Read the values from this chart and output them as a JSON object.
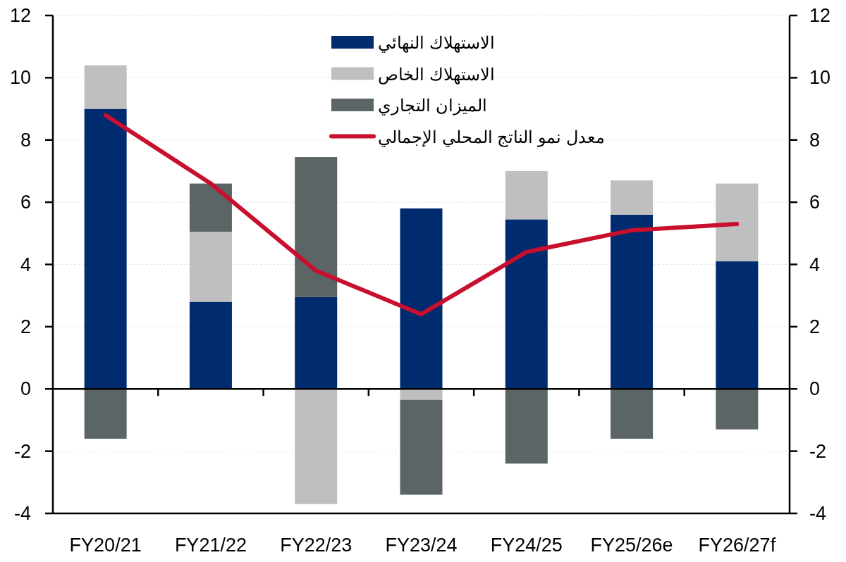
{
  "chart_data": {
    "type": "bar",
    "stacked": true,
    "categories": [
      "FY20/21",
      "FY21/22",
      "FY22/23",
      "FY23/24",
      "FY24/25",
      "FY25/26e",
      "FY26/27f"
    ],
    "series": [
      {
        "name": "الاستهلاك النهائي",
        "color": "#002b6e",
        "values": [
          9.0,
          2.8,
          2.95,
          5.8,
          5.45,
          5.6,
          4.1
        ]
      },
      {
        "name": "الاستهلاك الخاص",
        "color": "#bfbfbf",
        "values": [
          1.4,
          2.25,
          -3.7,
          -0.35,
          1.55,
          1.1,
          2.5
        ]
      },
      {
        "name": "الميزان التجاري",
        "color": "#5b6566",
        "values": [
          -1.6,
          1.55,
          4.5,
          -3.05,
          -2.4,
          -1.6,
          -1.3
        ]
      },
      {
        "name": "معدل نمو الناتج المحلي الإجمالي",
        "type": "line",
        "color": "#c8102e",
        "values": [
          8.8,
          6.6,
          3.8,
          2.4,
          4.4,
          5.1,
          5.3
        ]
      }
    ],
    "ylim": [
      -4,
      12
    ],
    "yticks": [
      -4,
      -2,
      0,
      2,
      4,
      6,
      8,
      10,
      12
    ],
    "y2lim": [
      -4,
      12
    ],
    "y2ticks": [
      -4,
      -2,
      0,
      2,
      4,
      6,
      8,
      10,
      12
    ],
    "grid": "y",
    "legend": "top"
  }
}
